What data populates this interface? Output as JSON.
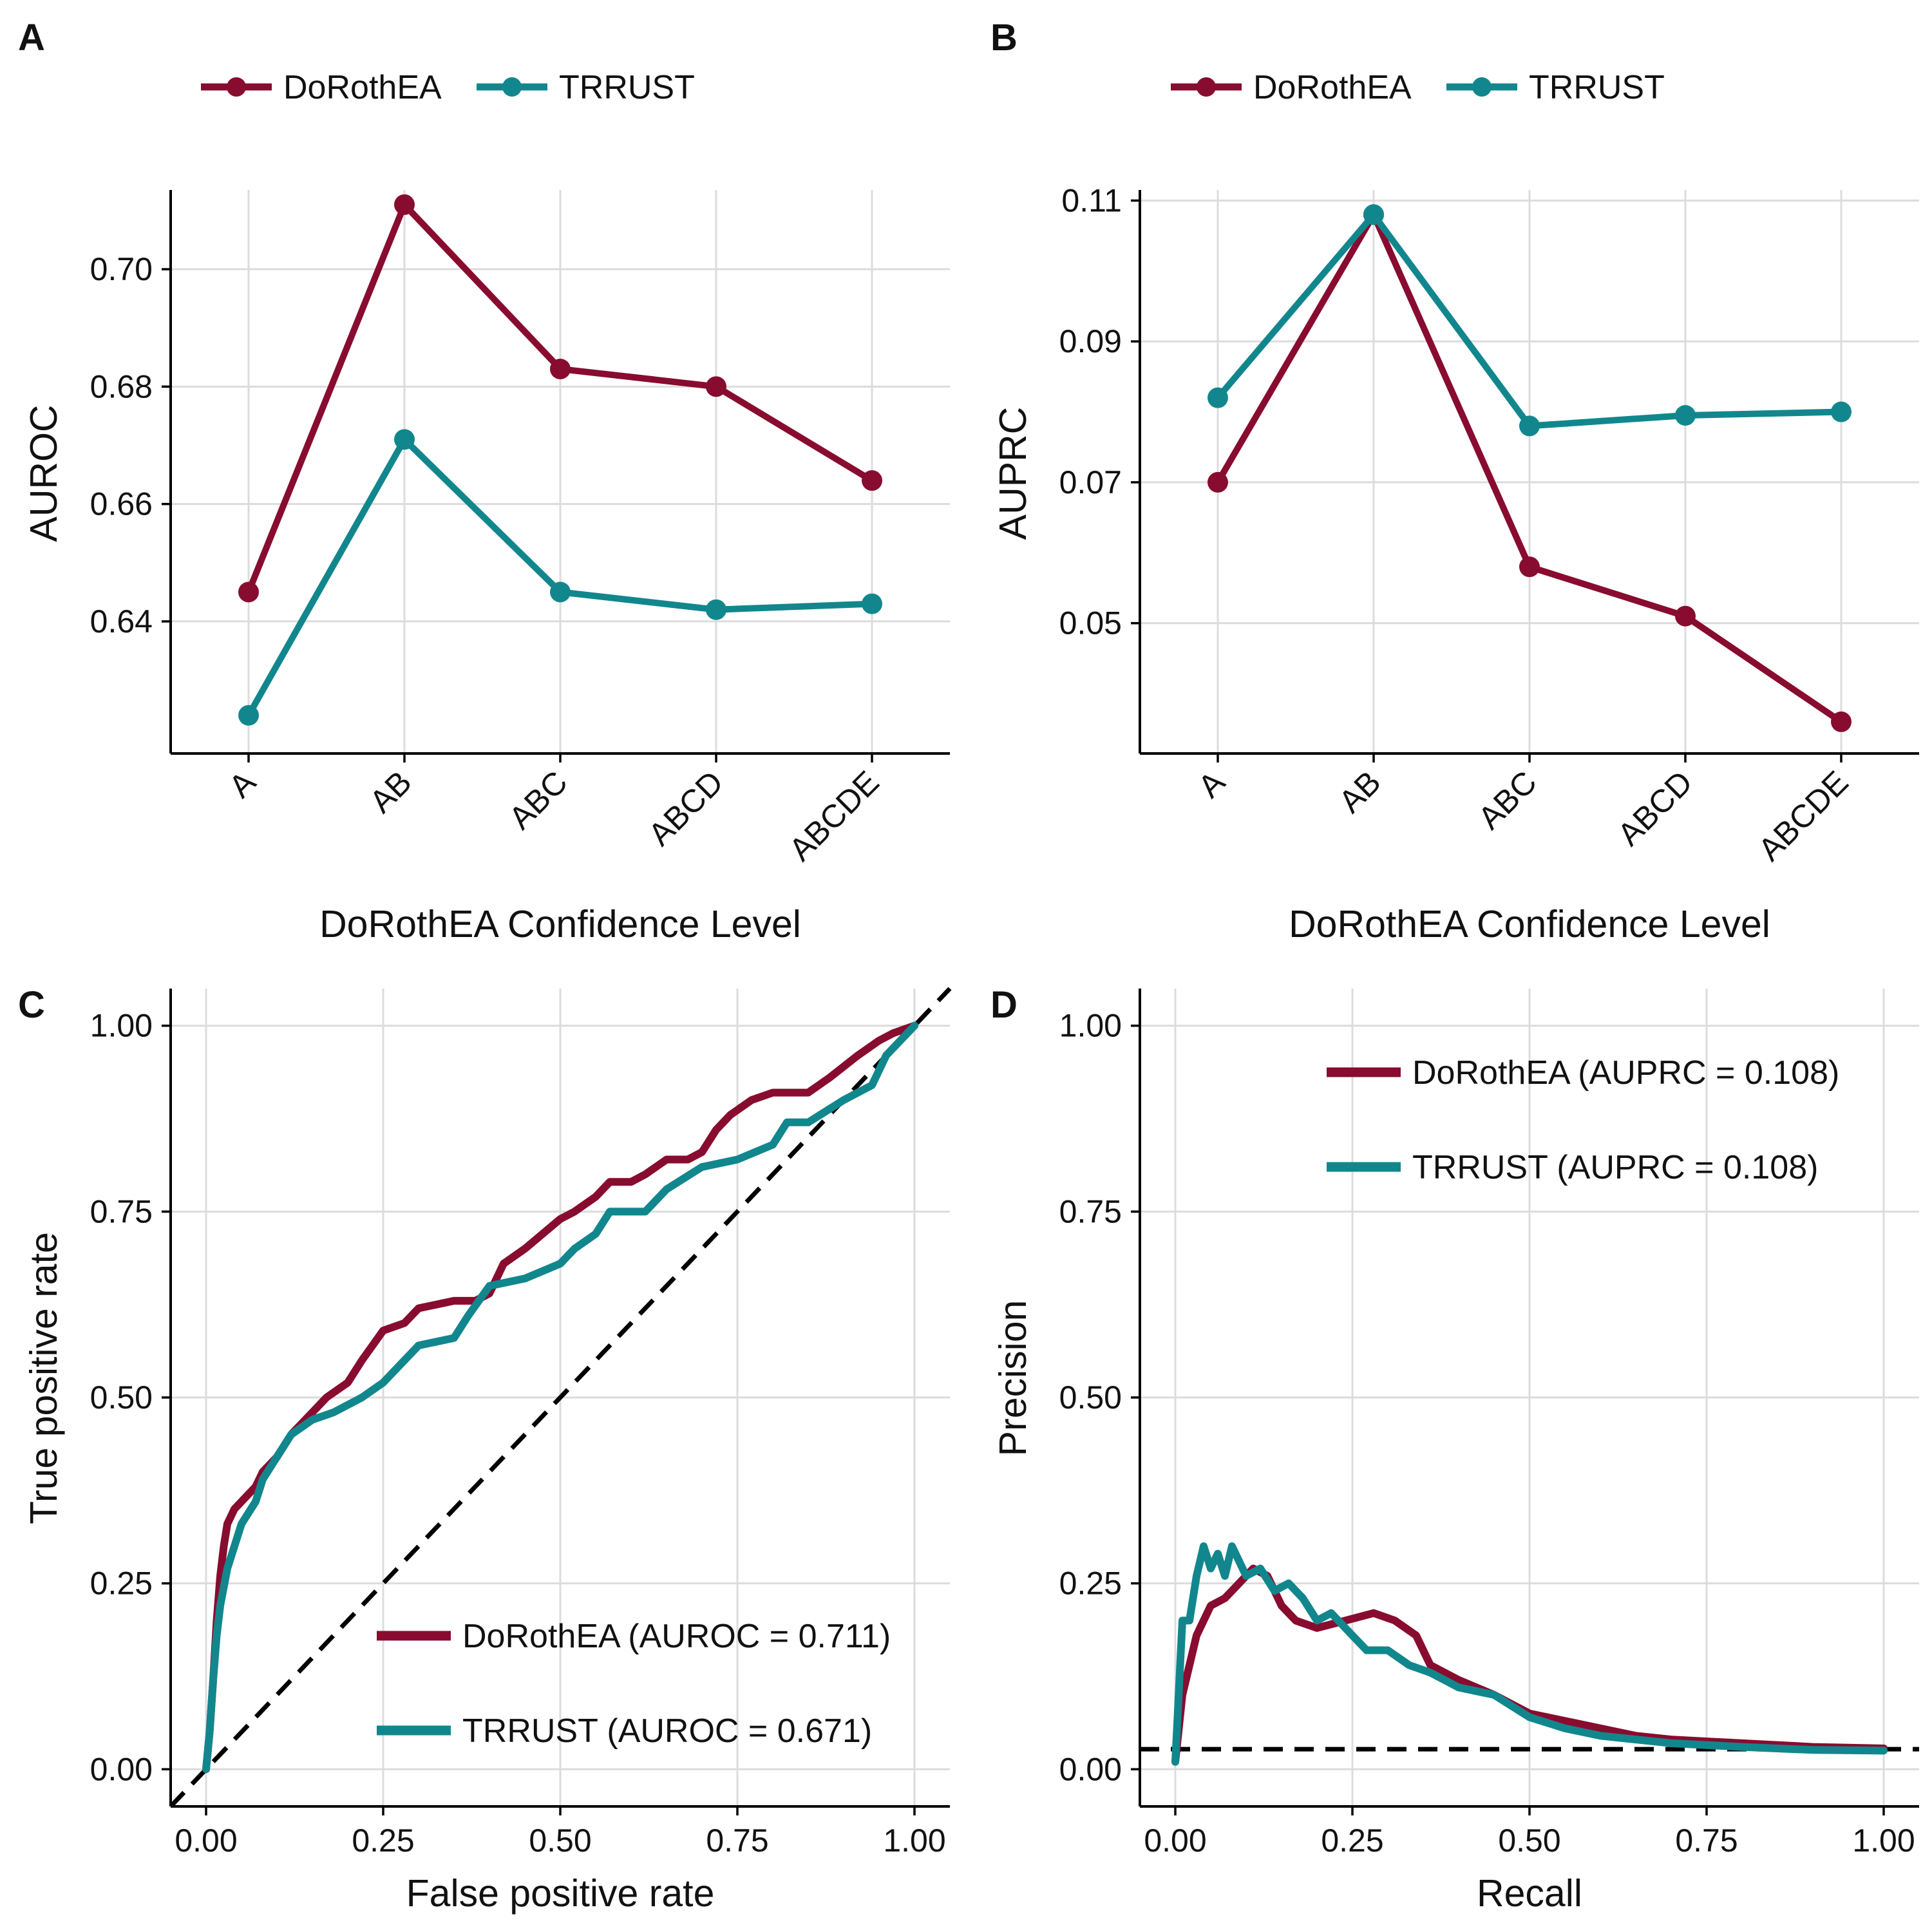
{
  "colors": {
    "dorothea": "#880c2f",
    "trrust": "#11878d",
    "reference": "#000000"
  },
  "panels": [
    {
      "letter": "A"
    },
    {
      "letter": "B"
    },
    {
      "letter": "C"
    },
    {
      "letter": "D"
    }
  ],
  "chart_data": [
    {
      "panel": "A",
      "type": "line",
      "xlabel": "DoRothEA Confidence Level",
      "ylabel": "AUROC",
      "categories": [
        "A",
        "AB",
        "ABC",
        "ABCD",
        "ABCDE"
      ],
      "ylim": [
        0.6175,
        0.7135
      ],
      "yticks": [
        0.64,
        0.66,
        0.68,
        0.7
      ],
      "ytick_labels": [
        "0.64",
        "0.66",
        "0.68",
        "0.70"
      ],
      "legend": {
        "position": "top",
        "entries": [
          "DoRothEA",
          "TRRUST"
        ]
      },
      "grid": true,
      "series": [
        {
          "name": "DoRothEA",
          "color_key": "dorothea",
          "values": [
            0.645,
            0.711,
            0.683,
            0.68,
            0.664
          ]
        },
        {
          "name": "TRRUST",
          "color_key": "trrust",
          "values": [
            0.624,
            0.671,
            0.645,
            0.642,
            0.643
          ]
        }
      ]
    },
    {
      "panel": "B",
      "type": "line",
      "xlabel": "DoRothEA Confidence Level",
      "ylabel": "AUPRC",
      "categories": [
        "A",
        "AB",
        "ABC",
        "ABCD",
        "ABCDE"
      ],
      "ylim": [
        0.0315,
        0.1115
      ],
      "yticks": [
        0.05,
        0.07,
        0.09,
        0.11
      ],
      "ytick_labels": [
        "0.05",
        "0.07",
        "0.09",
        "0.11"
      ],
      "legend": {
        "position": "top",
        "entries": [
          "DoRothEA",
          "TRRUST"
        ]
      },
      "grid": true,
      "series": [
        {
          "name": "DoRothEA",
          "color_key": "dorothea",
          "values": [
            0.07,
            0.108,
            0.058,
            0.051,
            0.036
          ]
        },
        {
          "name": "TRRUST",
          "color_key": "trrust",
          "values": [
            0.082,
            0.108,
            0.078,
            0.0795,
            0.08
          ]
        }
      ]
    },
    {
      "panel": "C",
      "type": "line",
      "xlabel": "False positive rate",
      "ylabel": "True positive rate",
      "xlim": [
        -0.05,
        1.05
      ],
      "ylim": [
        -0.05,
        1.05
      ],
      "xticks": [
        0,
        0.25,
        0.5,
        0.75,
        1.0
      ],
      "xtick_labels": [
        "0.00",
        "0.25",
        "0.50",
        "0.75",
        "1.00"
      ],
      "yticks": [
        0,
        0.25,
        0.5,
        0.75,
        1.0
      ],
      "ytick_labels": [
        "0.00",
        "0.25",
        "0.50",
        "0.75",
        "1.00"
      ],
      "legend": {
        "position": "bottom-right",
        "entries": [
          "DoRothEA (AUROC = 0.711)",
          "TRRUST (AUROC = 0.671)"
        ]
      },
      "grid": true,
      "reference_line": {
        "style": "dashed",
        "from": [
          -0.05,
          -0.05
        ],
        "to": [
          1.05,
          1.05
        ]
      },
      "series": [
        {
          "name": "DoRothEA (AUROC = 0.711)",
          "color_key": "dorothea",
          "points": [
            [
              0,
              0
            ],
            [
              0.005,
              0.05
            ],
            [
              0.01,
              0.12
            ],
            [
              0.015,
              0.2
            ],
            [
              0.02,
              0.26
            ],
            [
              0.025,
              0.3
            ],
            [
              0.03,
              0.33
            ],
            [
              0.04,
              0.35
            ],
            [
              0.05,
              0.36
            ],
            [
              0.07,
              0.38
            ],
            [
              0.08,
              0.4
            ],
            [
              0.1,
              0.42
            ],
            [
              0.12,
              0.45
            ],
            [
              0.15,
              0.48
            ],
            [
              0.17,
              0.5
            ],
            [
              0.2,
              0.52
            ],
            [
              0.22,
              0.55
            ],
            [
              0.25,
              0.59
            ],
            [
              0.28,
              0.6
            ],
            [
              0.3,
              0.62
            ],
            [
              0.35,
              0.63
            ],
            [
              0.38,
              0.63
            ],
            [
              0.4,
              0.64
            ],
            [
              0.42,
              0.68
            ],
            [
              0.45,
              0.7
            ],
            [
              0.5,
              0.74
            ],
            [
              0.52,
              0.75
            ],
            [
              0.55,
              0.77
            ],
            [
              0.57,
              0.79
            ],
            [
              0.6,
              0.79
            ],
            [
              0.62,
              0.8
            ],
            [
              0.65,
              0.82
            ],
            [
              0.68,
              0.82
            ],
            [
              0.7,
              0.83
            ],
            [
              0.72,
              0.86
            ],
            [
              0.74,
              0.88
            ],
            [
              0.77,
              0.9
            ],
            [
              0.8,
              0.91
            ],
            [
              0.85,
              0.91
            ],
            [
              0.88,
              0.93
            ],
            [
              0.92,
              0.96
            ],
            [
              0.95,
              0.98
            ],
            [
              0.97,
              0.99
            ],
            [
              1.0,
              1.0
            ]
          ]
        },
        {
          "name": "TRRUST (AUROC = 0.671)",
          "color_key": "trrust",
          "points": [
            [
              0,
              0
            ],
            [
              0.005,
              0.05
            ],
            [
              0.01,
              0.12
            ],
            [
              0.015,
              0.18
            ],
            [
              0.02,
              0.22
            ],
            [
              0.03,
              0.27
            ],
            [
              0.04,
              0.3
            ],
            [
              0.05,
              0.33
            ],
            [
              0.07,
              0.36
            ],
            [
              0.08,
              0.39
            ],
            [
              0.1,
              0.42
            ],
            [
              0.12,
              0.45
            ],
            [
              0.15,
              0.47
            ],
            [
              0.18,
              0.48
            ],
            [
              0.22,
              0.5
            ],
            [
              0.25,
              0.52
            ],
            [
              0.28,
              0.55
            ],
            [
              0.3,
              0.57
            ],
            [
              0.35,
              0.58
            ],
            [
              0.37,
              0.61
            ],
            [
              0.4,
              0.65
            ],
            [
              0.45,
              0.66
            ],
            [
              0.5,
              0.68
            ],
            [
              0.52,
              0.7
            ],
            [
              0.55,
              0.72
            ],
            [
              0.57,
              0.75
            ],
            [
              0.62,
              0.75
            ],
            [
              0.65,
              0.78
            ],
            [
              0.7,
              0.81
            ],
            [
              0.75,
              0.82
            ],
            [
              0.8,
              0.84
            ],
            [
              0.82,
              0.87
            ],
            [
              0.85,
              0.87
            ],
            [
              0.9,
              0.9
            ],
            [
              0.94,
              0.92
            ],
            [
              0.96,
              0.96
            ],
            [
              1.0,
              1.0
            ]
          ]
        }
      ]
    },
    {
      "panel": "D",
      "type": "line",
      "xlabel": "Recall",
      "ylabel": "Precision",
      "xlim": [
        -0.05,
        1.05
      ],
      "ylim": [
        -0.05,
        1.05
      ],
      "xticks": [
        0,
        0.25,
        0.5,
        0.75,
        1.0
      ],
      "xtick_labels": [
        "0.00",
        "0.25",
        "0.50",
        "0.75",
        "1.00"
      ],
      "yticks": [
        0,
        0.25,
        0.5,
        0.75,
        1.0
      ],
      "ytick_labels": [
        "0.00",
        "0.25",
        "0.50",
        "0.75",
        "1.00"
      ],
      "legend": {
        "position": "top-right",
        "entries": [
          "DoRothEA (AUPRC = 0.108)",
          "TRRUST (AUPRC = 0.108)"
        ]
      },
      "grid": true,
      "reference_line": {
        "style": "dashed",
        "from": [
          -0.05,
          0.027
        ],
        "to": [
          1.05,
          0.027
        ]
      },
      "series": [
        {
          "name": "DoRothEA (AUPRC = 0.108)",
          "color_key": "dorothea",
          "points": [
            [
              0,
              0.01
            ],
            [
              0.01,
              0.1
            ],
            [
              0.02,
              0.14
            ],
            [
              0.03,
              0.18
            ],
            [
              0.05,
              0.22
            ],
            [
              0.07,
              0.23
            ],
            [
              0.09,
              0.25
            ],
            [
              0.11,
              0.27
            ],
            [
              0.13,
              0.26
            ],
            [
              0.15,
              0.22
            ],
            [
              0.17,
              0.2
            ],
            [
              0.2,
              0.19
            ],
            [
              0.24,
              0.2
            ],
            [
              0.28,
              0.21
            ],
            [
              0.31,
              0.2
            ],
            [
              0.34,
              0.18
            ],
            [
              0.36,
              0.14
            ],
            [
              0.4,
              0.12
            ],
            [
              0.45,
              0.1
            ],
            [
              0.5,
              0.075
            ],
            [
              0.55,
              0.065
            ],
            [
              0.6,
              0.055
            ],
            [
              0.65,
              0.045
            ],
            [
              0.7,
              0.04
            ],
            [
              0.8,
              0.035
            ],
            [
              0.9,
              0.03
            ],
            [
              1.0,
              0.028
            ]
          ]
        },
        {
          "name": "TRRUST (AUPRC = 0.108)",
          "color_key": "trrust",
          "points": [
            [
              0,
              0.01
            ],
            [
              0.01,
              0.2
            ],
            [
              0.02,
              0.2
            ],
            [
              0.03,
              0.26
            ],
            [
              0.04,
              0.3
            ],
            [
              0.05,
              0.27
            ],
            [
              0.06,
              0.29
            ],
            [
              0.07,
              0.26
            ],
            [
              0.08,
              0.3
            ],
            [
              0.1,
              0.26
            ],
            [
              0.12,
              0.27
            ],
            [
              0.14,
              0.24
            ],
            [
              0.16,
              0.25
            ],
            [
              0.18,
              0.23
            ],
            [
              0.2,
              0.2
            ],
            [
              0.22,
              0.21
            ],
            [
              0.25,
              0.18
            ],
            [
              0.27,
              0.16
            ],
            [
              0.3,
              0.16
            ],
            [
              0.33,
              0.14
            ],
            [
              0.36,
              0.13
            ],
            [
              0.4,
              0.11
            ],
            [
              0.45,
              0.1
            ],
            [
              0.5,
              0.07
            ],
            [
              0.55,
              0.055
            ],
            [
              0.6,
              0.045
            ],
            [
              0.65,
              0.04
            ],
            [
              0.7,
              0.035
            ],
            [
              0.8,
              0.03
            ],
            [
              0.9,
              0.026
            ],
            [
              1.0,
              0.025
            ]
          ]
        }
      ]
    }
  ]
}
